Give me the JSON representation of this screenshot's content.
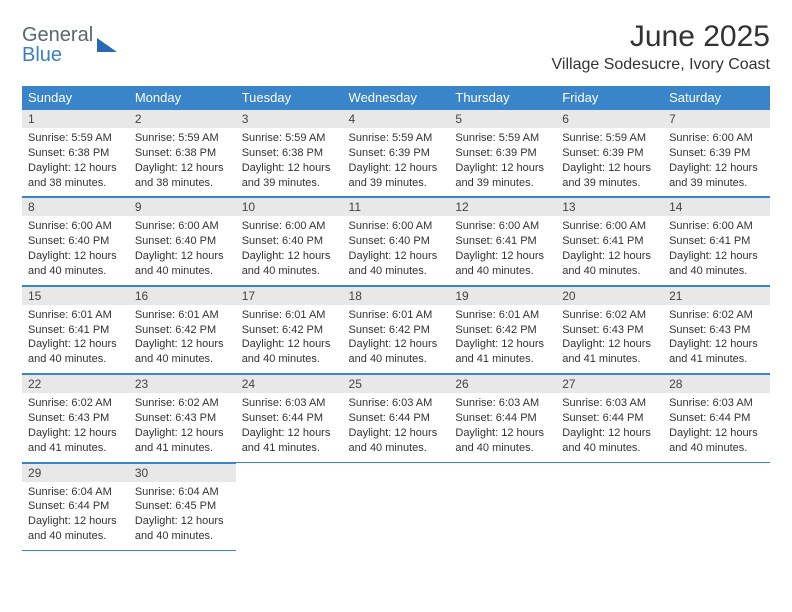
{
  "logo": {
    "line1": "General",
    "line2": "Blue"
  },
  "title": "June 2025",
  "location": "Village Sodesucre, Ivory Coast",
  "colors": {
    "header_bg": "#3a85c9",
    "header_text": "#ffffff",
    "daynum_bg": "#e8e8e8",
    "border": "#3a85c9",
    "logo_gray": "#5a6570",
    "logo_blue": "#3a7fc4"
  },
  "weekdays": [
    "Sunday",
    "Monday",
    "Tuesday",
    "Wednesday",
    "Thursday",
    "Friday",
    "Saturday"
  ],
  "weeks": [
    [
      {
        "n": "1",
        "sr": "5:59 AM",
        "ss": "6:38 PM",
        "dh": "12",
        "dm": "38"
      },
      {
        "n": "2",
        "sr": "5:59 AM",
        "ss": "6:38 PM",
        "dh": "12",
        "dm": "38"
      },
      {
        "n": "3",
        "sr": "5:59 AM",
        "ss": "6:38 PM",
        "dh": "12",
        "dm": "39"
      },
      {
        "n": "4",
        "sr": "5:59 AM",
        "ss": "6:39 PM",
        "dh": "12",
        "dm": "39"
      },
      {
        "n": "5",
        "sr": "5:59 AM",
        "ss": "6:39 PM",
        "dh": "12",
        "dm": "39"
      },
      {
        "n": "6",
        "sr": "5:59 AM",
        "ss": "6:39 PM",
        "dh": "12",
        "dm": "39"
      },
      {
        "n": "7",
        "sr": "6:00 AM",
        "ss": "6:39 PM",
        "dh": "12",
        "dm": "39"
      }
    ],
    [
      {
        "n": "8",
        "sr": "6:00 AM",
        "ss": "6:40 PM",
        "dh": "12",
        "dm": "40"
      },
      {
        "n": "9",
        "sr": "6:00 AM",
        "ss": "6:40 PM",
        "dh": "12",
        "dm": "40"
      },
      {
        "n": "10",
        "sr": "6:00 AM",
        "ss": "6:40 PM",
        "dh": "12",
        "dm": "40"
      },
      {
        "n": "11",
        "sr": "6:00 AM",
        "ss": "6:40 PM",
        "dh": "12",
        "dm": "40"
      },
      {
        "n": "12",
        "sr": "6:00 AM",
        "ss": "6:41 PM",
        "dh": "12",
        "dm": "40"
      },
      {
        "n": "13",
        "sr": "6:00 AM",
        "ss": "6:41 PM",
        "dh": "12",
        "dm": "40"
      },
      {
        "n": "14",
        "sr": "6:00 AM",
        "ss": "6:41 PM",
        "dh": "12",
        "dm": "40"
      }
    ],
    [
      {
        "n": "15",
        "sr": "6:01 AM",
        "ss": "6:41 PM",
        "dh": "12",
        "dm": "40"
      },
      {
        "n": "16",
        "sr": "6:01 AM",
        "ss": "6:42 PM",
        "dh": "12",
        "dm": "40"
      },
      {
        "n": "17",
        "sr": "6:01 AM",
        "ss": "6:42 PM",
        "dh": "12",
        "dm": "40"
      },
      {
        "n": "18",
        "sr": "6:01 AM",
        "ss": "6:42 PM",
        "dh": "12",
        "dm": "40"
      },
      {
        "n": "19",
        "sr": "6:01 AM",
        "ss": "6:42 PM",
        "dh": "12",
        "dm": "41"
      },
      {
        "n": "20",
        "sr": "6:02 AM",
        "ss": "6:43 PM",
        "dh": "12",
        "dm": "41"
      },
      {
        "n": "21",
        "sr": "6:02 AM",
        "ss": "6:43 PM",
        "dh": "12",
        "dm": "41"
      }
    ],
    [
      {
        "n": "22",
        "sr": "6:02 AM",
        "ss": "6:43 PM",
        "dh": "12",
        "dm": "41"
      },
      {
        "n": "23",
        "sr": "6:02 AM",
        "ss": "6:43 PM",
        "dh": "12",
        "dm": "41"
      },
      {
        "n": "24",
        "sr": "6:03 AM",
        "ss": "6:44 PM",
        "dh": "12",
        "dm": "41"
      },
      {
        "n": "25",
        "sr": "6:03 AM",
        "ss": "6:44 PM",
        "dh": "12",
        "dm": "40"
      },
      {
        "n": "26",
        "sr": "6:03 AM",
        "ss": "6:44 PM",
        "dh": "12",
        "dm": "40"
      },
      {
        "n": "27",
        "sr": "6:03 AM",
        "ss": "6:44 PM",
        "dh": "12",
        "dm": "40"
      },
      {
        "n": "28",
        "sr": "6:03 AM",
        "ss": "6:44 PM",
        "dh": "12",
        "dm": "40"
      }
    ],
    [
      {
        "n": "29",
        "sr": "6:04 AM",
        "ss": "6:44 PM",
        "dh": "12",
        "dm": "40"
      },
      {
        "n": "30",
        "sr": "6:04 AM",
        "ss": "6:45 PM",
        "dh": "12",
        "dm": "40"
      },
      null,
      null,
      null,
      null,
      null
    ]
  ],
  "labels": {
    "sunrise": "Sunrise:",
    "sunset": "Sunset:",
    "daylight": "Daylight:",
    "hours": "hours",
    "and": "and",
    "minutes": "minutes."
  }
}
